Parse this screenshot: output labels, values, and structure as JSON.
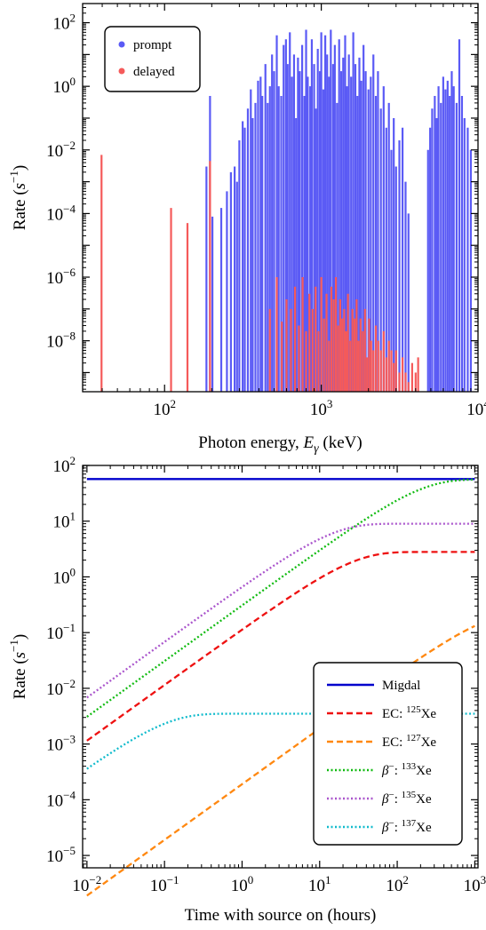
{
  "chart_data": [
    {
      "type": "bar",
      "subtype": "spectrum",
      "title": "",
      "xlabel": "Photon energy, E_γ (keV)",
      "xlabel_main": "Photon energy, ",
      "xlabel_symbol": "E",
      "xlabel_subscript": "γ",
      "xlabel_unit": " (keV)",
      "ylabel_main": "Rate (",
      "ylabel_symbol": "s",
      "ylabel_exp": "−1",
      "ylabel_close": ")",
      "xscale": "log",
      "yscale": "log",
      "xlim": [
        30,
        10000
      ],
      "ylim": [
        2.5e-10,
        400
      ],
      "x_ticks": [
        {
          "value": 100,
          "base": "10",
          "exp": "2"
        },
        {
          "value": 1000,
          "base": "10",
          "exp": "3"
        },
        {
          "value": 10000,
          "base": "10",
          "exp": "4"
        }
      ],
      "y_ticks": [
        {
          "value": 1e-08,
          "base": "10",
          "exp": "−8"
        },
        {
          "value": 1e-06,
          "base": "10",
          "exp": "−6"
        },
        {
          "value": 0.0001,
          "base": "10",
          "exp": "−4"
        },
        {
          "value": 0.01,
          "base": "10",
          "exp": "−2"
        },
        {
          "value": 1,
          "base": "10",
          "exp": "0"
        },
        {
          "value": 100,
          "base": "10",
          "exp": "2"
        }
      ],
      "legend": {
        "position": "top-left"
      },
      "series": [
        {
          "name": "prompt",
          "color": "#5a5af5",
          "points": [
            [
              185,
              0.003
            ],
            [
              195,
              0.5
            ],
            [
              202,
              8e-05
            ],
            [
              230,
              0.00015
            ],
            [
              250,
              0.0005
            ],
            [
              265,
              0.002
            ],
            [
              280,
              0.003
            ],
            [
              290,
              0.001
            ],
            [
              300,
              0.02
            ],
            [
              315,
              0.08
            ],
            [
              325,
              0.05
            ],
            [
              340,
              0.2
            ],
            [
              355,
              0.8
            ],
            [
              365,
              0.1
            ],
            [
              380,
              0.3
            ],
            [
              395,
              1.5
            ],
            [
              410,
              2
            ],
            [
              420,
              0.5
            ],
            [
              440,
              5
            ],
            [
              455,
              0.3
            ],
            [
              470,
              1
            ],
            [
              485,
              10
            ],
            [
              500,
              3
            ],
            [
              520,
              40
            ],
            [
              535,
              1
            ],
            [
              555,
              0.5
            ],
            [
              575,
              20
            ],
            [
              595,
              30
            ],
            [
              610,
              5
            ],
            [
              630,
              50
            ],
            [
              650,
              2
            ],
            [
              670,
              10
            ],
            [
              690,
              0.1
            ],
            [
              710,
              8
            ],
            [
              730,
              3
            ],
            [
              755,
              20
            ],
            [
              780,
              0.5
            ],
            [
              800,
              60
            ],
            [
              820,
              2
            ],
            [
              850,
              1
            ],
            [
              870,
              30
            ],
            [
              900,
              5
            ],
            [
              925,
              0.2
            ],
            [
              950,
              15
            ],
            [
              980,
              3
            ],
            [
              1000,
              50
            ],
            [
              1030,
              0.8
            ],
            [
              1060,
              40
            ],
            [
              1090,
              10
            ],
            [
              1120,
              2
            ],
            [
              1150,
              60
            ],
            [
              1190,
              5
            ],
            [
              1220,
              20
            ],
            [
              1260,
              0.3
            ],
            [
              1300,
              30
            ],
            [
              1340,
              3
            ],
            [
              1380,
              8
            ],
            [
              1420,
              40
            ],
            [
              1460,
              1
            ],
            [
              1500,
              10
            ],
            [
              1550,
              2
            ],
            [
              1600,
              50
            ],
            [
              1650,
              5
            ],
            [
              1700,
              0.5
            ],
            [
              1750,
              8
            ],
            [
              1800,
              1.5
            ],
            [
              1860,
              20
            ],
            [
              1920,
              3
            ],
            [
              2000,
              0.8
            ],
            [
              2070,
              2
            ],
            [
              2150,
              10
            ],
            [
              2230,
              0.5
            ],
            [
              2300,
              3
            ],
            [
              2400,
              0.2
            ],
            [
              2500,
              1
            ],
            [
              2600,
              0.05
            ],
            [
              2700,
              0.3
            ],
            [
              2800,
              0.01
            ],
            [
              2900,
              0.1
            ],
            [
              3000,
              0.003
            ],
            [
              3150,
              0.02
            ],
            [
              3300,
              0.05
            ],
            [
              3450,
              0.001
            ],
            [
              3600,
              0.0001
            ],
            [
              4800,
              0.01
            ],
            [
              4950,
              0.05
            ],
            [
              5100,
              0.2
            ],
            [
              5300,
              0.5
            ],
            [
              5450,
              0.1
            ],
            [
              5600,
              1
            ],
            [
              5800,
              0.3
            ],
            [
              6000,
              2
            ],
            [
              6200,
              0.8
            ],
            [
              6400,
              1.5
            ],
            [
              6600,
              0.5
            ],
            [
              6800,
              3
            ],
            [
              7000,
              1
            ],
            [
              7300,
              0.3
            ],
            [
              7600,
              30
            ],
            [
              7900,
              0.5
            ],
            [
              8200,
              0.1
            ],
            [
              8600,
              0.05
            ],
            [
              9000,
              0.01
            ]
          ]
        },
        {
          "name": "delayed",
          "color": "#f55a5a",
          "points": [
            [
              39.6,
              0.007
            ],
            [
              110,
              0.00015
            ],
            [
              140,
              5e-05
            ],
            [
              195,
              0.0045
            ],
            [
              470,
              1e-07
            ],
            [
              520,
              1e-06
            ],
            [
              560,
              4e-08
            ],
            [
              600,
              2e-07
            ],
            [
              640,
              1e-07
            ],
            [
              680,
              5e-07
            ],
            [
              720,
              3e-08
            ],
            [
              760,
              1e-06
            ],
            [
              800,
              2e-08
            ],
            [
              840,
              3e-07
            ],
            [
              880,
              1e-07
            ],
            [
              920,
              5e-07
            ],
            [
              960,
              2e-08
            ],
            [
              1000,
              1e-06
            ],
            [
              1040,
              5e-08
            ],
            [
              1080,
              3e-07
            ],
            [
              1120,
              1e-08
            ],
            [
              1160,
              5e-07
            ],
            [
              1200,
              2e-07
            ],
            [
              1240,
              1e-06
            ],
            [
              1280,
              3e-08
            ],
            [
              1320,
              2e-07
            ],
            [
              1360,
              5e-08
            ],
            [
              1400,
              1e-07
            ],
            [
              1440,
              2e-08
            ],
            [
              1480,
              3e-07
            ],
            [
              1530,
              1e-08
            ],
            [
              1580,
              1e-07
            ],
            [
              1630,
              5e-08
            ],
            [
              1680,
              2e-07
            ],
            [
              1730,
              1e-08
            ],
            [
              1780,
              5e-08
            ],
            [
              1840,
              2e-08
            ],
            [
              1900,
              1e-07
            ],
            [
              1960,
              3e-09
            ],
            [
              2020,
              5e-08
            ],
            [
              2080,
              1e-08
            ],
            [
              2150,
              5e-09
            ],
            [
              2230,
              3e-08
            ],
            [
              2310,
              1e-08
            ],
            [
              2400,
              5e-09
            ],
            [
              2500,
              2e-08
            ],
            [
              2600,
              3e-09
            ],
            [
              2700,
              1e-08
            ],
            [
              2800,
              5e-09
            ],
            [
              2900,
              2e-09
            ],
            [
              3000,
              5e-09
            ],
            [
              3150,
              1e-09
            ],
            [
              3300,
              3e-09
            ],
            [
              3450,
              1e-09
            ],
            [
              3600,
              5e-10
            ],
            [
              3800,
              2e-09
            ],
            [
              4000,
              1e-09
            ],
            [
              4150,
              3e-09
            ]
          ]
        }
      ]
    },
    {
      "type": "line",
      "title": "",
      "xlabel": "Time with source on (hours)",
      "ylabel_main": "Rate (",
      "ylabel_symbol": "s",
      "ylabel_exp": "−1",
      "ylabel_close": ")",
      "xscale": "log",
      "yscale": "log",
      "xlim": [
        0.0088,
        1100
      ],
      "ylim": [
        6e-06,
        100
      ],
      "x_ticks": [
        {
          "value": 0.01,
          "base": "10",
          "exp": "−2"
        },
        {
          "value": 0.1,
          "base": "10",
          "exp": "−1"
        },
        {
          "value": 1,
          "base": "10",
          "exp": "0"
        },
        {
          "value": 10,
          "base": "10",
          "exp": "1"
        },
        {
          "value": 100,
          "base": "10",
          "exp": "2"
        },
        {
          "value": 1000,
          "base": "10",
          "exp": "3"
        }
      ],
      "y_ticks": [
        {
          "value": 1e-05,
          "base": "10",
          "exp": "−5"
        },
        {
          "value": 0.0001,
          "base": "10",
          "exp": "−4"
        },
        {
          "value": 0.001,
          "base": "10",
          "exp": "−3"
        },
        {
          "value": 0.01,
          "base": "10",
          "exp": "−2"
        },
        {
          "value": 0.1,
          "base": "10",
          "exp": "−1"
        },
        {
          "value": 1,
          "base": "10",
          "exp": "0"
        },
        {
          "value": 10,
          "base": "10",
          "exp": "1"
        },
        {
          "value": 100,
          "base": "10",
          "exp": "2"
        }
      ],
      "legend": {
        "position": "bottom-right"
      },
      "series": [
        {
          "name": "Migdal",
          "prefix": "Migdal",
          "isotope_mass": "",
          "isotope": "",
          "color": "#0000cc",
          "dash": "solid",
          "saturation": 57,
          "halflife_hours": 0
        },
        {
          "name": "EC: 125Xe",
          "prefix": "EC: ",
          "isotope_mass": "125",
          "isotope": "Xe",
          "color": "#ee1111",
          "dash": "dashed",
          "saturation": 2.8,
          "halflife_hours": 16.9
        },
        {
          "name": "EC: 127Xe",
          "prefix": "EC: ",
          "isotope_mass": "127",
          "isotope": "Xe",
          "color": "#ff8811",
          "dash": "dashed",
          "saturation": 0.24,
          "halflife_hours": 874
        },
        {
          "name": "β−: 133Xe",
          "prefix": "β−: ",
          "isotope_mass": "133",
          "isotope": "Xe",
          "color": "#11bb11",
          "dash": "dotted",
          "saturation": 56,
          "halflife_hours": 126
        },
        {
          "name": "β−: 135Xe",
          "prefix": "β−: ",
          "isotope_mass": "135",
          "isotope": "Xe",
          "color": "#aa55cc",
          "dash": "dotted",
          "saturation": 9,
          "halflife_hours": 9.14
        },
        {
          "name": "β−: 137Xe",
          "prefix": "β−: ",
          "isotope_mass": "137",
          "isotope": "Xe",
          "color": "#11bbcc",
          "dash": "dotted",
          "saturation": 0.0035,
          "halflife_hours": 0.064
        }
      ]
    }
  ]
}
